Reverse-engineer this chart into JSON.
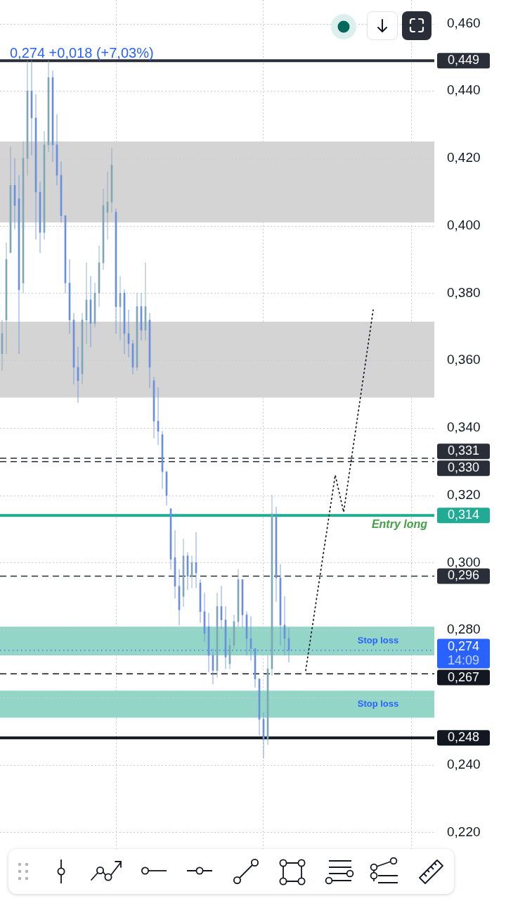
{
  "chart_data": {
    "type": "candlestick",
    "subtitle": "0,274 +0,018 (+7,03%)",
    "categories": [
      null,
      null,
      null,
      null,
      null,
      null,
      null,
      null,
      null,
      null,
      null,
      null,
      null,
      null,
      null,
      null,
      null,
      null,
      null,
      null,
      null,
      null,
      null,
      null,
      null,
      null,
      null,
      null,
      null,
      null,
      null,
      null,
      null,
      null,
      null,
      null,
      null,
      null,
      null,
      null,
      null,
      null,
      null,
      null,
      null,
      null,
      null,
      null,
      null,
      null,
      null,
      null,
      null,
      null,
      null,
      null,
      null,
      null,
      null,
      null,
      null,
      null,
      null,
      null,
      null,
      null,
      null,
      null,
      null,
      null,
      null,
      null,
      null,
      null,
      null,
      null,
      null,
      null,
      null,
      null,
      null,
      null,
      null,
      null,
      null,
      null,
      null,
      null,
      null,
      null,
      null,
      null,
      null,
      null,
      null,
      null,
      null,
      null,
      null,
      null,
      null,
      null,
      null
    ],
    "ohlc": [
      [
        0.362,
        0.372,
        0.357,
        0.368
      ],
      [
        0.372,
        0.395,
        0.362,
        0.39
      ],
      [
        0.392,
        0.4235,
        0.392,
        0.412
      ],
      [
        0.412,
        0.42,
        0.399,
        0.406
      ],
      [
        0.408,
        0.415,
        0.362,
        0.381
      ],
      [
        0.383,
        0.425,
        0.38,
        0.42
      ],
      [
        0.42,
        0.449,
        0.415,
        0.44
      ],
      [
        0.44,
        0.449,
        0.421,
        0.432
      ],
      [
        0.432,
        0.439,
        0.396,
        0.41
      ],
      [
        0.41,
        0.413,
        0.392,
        0.398
      ],
      [
        0.398,
        0.428,
        0.396,
        0.424
      ],
      [
        0.424,
        0.449,
        0.422,
        0.444
      ],
      [
        0.444,
        0.446,
        0.419,
        0.424
      ],
      [
        0.424,
        0.433,
        0.412,
        0.415
      ],
      [
        0.415,
        0.419,
        0.401,
        0.403
      ],
      [
        0.403,
        0.403,
        0.38,
        0.383
      ],
      [
        0.383,
        0.39,
        0.368,
        0.372
      ],
      [
        0.372,
        0.374,
        0.353,
        0.358
      ],
      [
        0.358,
        0.364,
        0.3475,
        0.354
      ],
      [
        0.356,
        0.374,
        0.353,
        0.372
      ],
      [
        0.372,
        0.389,
        0.365,
        0.378
      ],
      [
        0.378,
        0.385,
        0.364,
        0.371
      ],
      [
        0.371,
        0.383,
        0.37,
        0.38
      ],
      [
        0.38,
        0.394,
        0.376,
        0.389
      ],
      [
        0.389,
        0.411,
        0.387,
        0.406
      ],
      [
        0.404,
        0.416,
        0.396,
        0.407
      ],
      [
        0.407,
        0.423,
        0.404,
        0.418
      ],
      [
        0.404,
        0.405,
        0.368,
        0.376
      ],
      [
        0.376,
        0.385,
        0.366,
        0.38
      ],
      [
        0.38,
        0.381,
        0.362,
        0.368
      ],
      [
        0.368,
        0.375,
        0.361,
        0.365
      ],
      [
        0.365,
        0.366,
        0.356,
        0.358
      ],
      [
        0.358,
        0.38,
        0.357,
        0.376
      ],
      [
        0.376,
        0.38,
        0.366,
        0.369
      ],
      [
        0.369,
        0.389,
        0.366,
        0.376
      ],
      [
        0.372,
        0.374,
        0.352,
        0.358
      ],
      [
        0.354,
        0.355,
        0.337,
        0.342
      ],
      [
        0.342,
        0.352,
        0.335,
        0.339
      ],
      [
        0.338,
        0.339,
        0.322,
        0.327
      ],
      [
        0.327,
        0.327,
        0.317,
        0.32
      ],
      [
        0.316,
        0.316,
        0.298,
        0.301
      ],
      [
        0.3015,
        0.3095,
        0.2895,
        0.293
      ],
      [
        0.293,
        0.298,
        0.2815,
        0.286
      ],
      [
        0.29,
        0.307,
        0.287,
        0.302
      ],
      [
        0.302,
        0.303,
        0.292,
        0.296
      ],
      [
        0.296,
        0.302,
        0.2925,
        0.3
      ],
      [
        0.3,
        0.309,
        0.2925,
        0.297
      ],
      [
        0.294,
        0.295,
        0.2822,
        0.2855
      ],
      [
        0.2855,
        0.291,
        0.2765,
        0.279
      ],
      [
        0.281,
        0.285,
        0.2676,
        0.2725
      ],
      [
        0.2725,
        0.2745,
        0.264,
        0.268
      ],
      [
        0.268,
        0.291,
        0.266,
        0.287
      ],
      [
        0.287,
        0.293,
        0.2805,
        0.283
      ],
      [
        0.283,
        0.287,
        0.2685,
        0.272
      ],
      [
        0.27,
        0.2775,
        0.2685,
        0.2755
      ],
      [
        0.2755,
        0.2845,
        0.2745,
        0.2825
      ],
      [
        0.2825,
        0.298,
        0.281,
        0.295
      ],
      [
        0.295,
        0.295,
        0.2808,
        0.2845
      ],
      [
        0.2845,
        0.2855,
        0.2725,
        0.2775
      ],
      [
        0.2775,
        0.284,
        0.271,
        0.2745
      ],
      [
        0.2745,
        0.2745,
        0.263,
        0.2655
      ],
      [
        0.2655,
        0.2655,
        0.2488,
        0.2535
      ],
      [
        0.2535,
        0.2555,
        0.242,
        0.2475
      ],
      [
        0.2475,
        0.2725,
        0.246,
        0.2685
      ],
      [
        0.2685,
        0.32,
        0.2665,
        0.3145
      ],
      [
        0.3135,
        0.3165,
        0.2885,
        0.2955
      ],
      [
        0.2955,
        0.2995,
        0.2755,
        0.2815
      ],
      [
        0.2815,
        0.29,
        0.2725,
        0.2775
      ],
      [
        0.2775,
        0.2805,
        0.2705,
        0.274
      ],
      null,
      null,
      null,
      null,
      null,
      null,
      null,
      null,
      null,
      null,
      null,
      null,
      null,
      null,
      null,
      null,
      null,
      null,
      null,
      null,
      null,
      null,
      null,
      null,
      null,
      null,
      null,
      null,
      null,
      null,
      null,
      null,
      null,
      null
    ],
    "colors": [
      "#7fa6b8",
      "#7fa6b8",
      "#7fa6b8",
      "#6a8fdc",
      "#6a8fdc",
      "#7fa6b8",
      "#7fa6b8",
      "#6a8fdc",
      "#6a8fdc",
      "#6a8fdc",
      "#7fa6b8",
      "#7fa6b8",
      "#6a8fdc",
      "#6a8fdc",
      "#6a8fdc",
      "#6a8fdc",
      "#6a8fdc",
      "#6a8fdc",
      "#6a8fdc",
      "#7fa6b8",
      "#7fa6b8",
      "#6a8fdc",
      "#7fa6b8",
      "#7fa6b8",
      "#7fa6b8",
      "#7fa6b8",
      "#7fa6b8",
      "#6a8fdc",
      "#7fa6b8",
      "#6a8fdc",
      "#6a8fdc",
      "#6a8fdc",
      "#7fa6b8",
      "#6a8fdc",
      "#7fa6b8",
      "#6a8fdc",
      "#6a8fdc",
      "#6a8fdc",
      "#6a8fdc",
      "#6a8fdc",
      "#6a8fdc",
      "#6a8fdc",
      "#6a8fdc",
      "#7fa6b8",
      "#6a8fdc",
      "#7fa6b8",
      "#6a8fdc",
      "#6a8fdc",
      "#6a8fdc",
      "#6a8fdc",
      "#6a8fdc",
      "#7fa6b8",
      "#6a8fdc",
      "#6a8fdc",
      "#7fa6b8",
      "#7fa6b8",
      "#7fa6b8",
      "#6a8fdc",
      "#6a8fdc",
      "#6a8fdc",
      "#6a8fdc",
      "#6a8fdc",
      "#6a8fdc",
      "#7fa6b8",
      "#7fa6b8",
      "#6a8fdc",
      "#6a8fdc",
      "#6a8fdc",
      "#6a8fdc",
      null,
      null,
      null,
      null,
      null,
      null,
      null,
      null,
      null,
      null,
      null,
      null,
      null,
      null,
      null,
      null,
      null,
      null,
      null,
      null,
      null,
      null,
      null,
      null,
      null,
      null,
      null,
      null,
      null,
      null,
      null,
      null,
      null,
      null
    ],
    "series": [
      {
        "type": "line",
        "color": "#131722",
        "line_style": "dotted",
        "marker": "none",
        "values": [
          null,
          null,
          null,
          null,
          null,
          null,
          null,
          null,
          null,
          null,
          null,
          null,
          null,
          null,
          null,
          null,
          null,
          null,
          null,
          null,
          null,
          null,
          null,
          null,
          null,
          null,
          null,
          null,
          null,
          null,
          null,
          null,
          null,
          null,
          null,
          null,
          null,
          null,
          null,
          null,
          null,
          null,
          null,
          null,
          null,
          null,
          null,
          null,
          null,
          null,
          null,
          null,
          null,
          null,
          null,
          null,
          null,
          null,
          null,
          null,
          null,
          null,
          null,
          null,
          null,
          null,
          null,
          null,
          null,
          null,
          null,
          null,
          0.268,
          null,
          null,
          null,
          null,
          null,
          null,
          0.326,
          null,
          0.315,
          null,
          null,
          null,
          null,
          null,
          null,
          0.375,
          null,
          null,
          null,
          null,
          null,
          null,
          null,
          null,
          null,
          null,
          null,
          null,
          null,
          null
        ]
      }
    ],
    "ylim": [
      0.214,
      0.467
    ],
    "yticks": [
      {
        "value": 0.22,
        "label": "0,220"
      },
      {
        "value": 0.24,
        "label": "0,240"
      },
      {
        "value": 0.26,
        "label": null
      },
      {
        "value": 0.28,
        "label": "0,280"
      },
      {
        "value": 0.3,
        "label": "0,300"
      },
      {
        "value": 0.32,
        "label": "0,320"
      },
      {
        "value": 0.34,
        "label": "0,340"
      },
      {
        "value": 0.36,
        "label": "0,360"
      },
      {
        "value": 0.38,
        "label": "0,380"
      },
      {
        "value": 0.4,
        "label": "0,400"
      },
      {
        "value": 0.42,
        "label": "0,420"
      },
      {
        "value": 0.44,
        "label": "0,440"
      },
      {
        "value": 0.46,
        "label": "0,460"
      }
    ],
    "grid": true,
    "tick_labels": "y",
    "ref_lines": [
      {
        "axis": "y",
        "value": 0.449,
        "color": "#2a2e39",
        "line_style": "solid",
        "label": "0,449"
      },
      {
        "axis": "y",
        "value": 0.331,
        "color": "#2a2e39",
        "line_style": "dashed",
        "label": "0,331"
      },
      {
        "axis": "y",
        "value": 0.33,
        "color": "#2a2e39",
        "line_style": "dashed",
        "label": "0,330"
      },
      {
        "axis": "y",
        "value": 0.314,
        "color": "#22ab94",
        "line_style": "solid",
        "label": "0,314"
      },
      {
        "axis": "y",
        "value": 0.296,
        "color": "#2a2e39",
        "line_style": "dashed",
        "label": "0,296"
      },
      {
        "axis": "y",
        "value": 0.274,
        "color": "#2962ff",
        "line_style": "dotted",
        "label": "0,274\n14:09"
      },
      {
        "axis": "y",
        "value": 0.267,
        "color": "#131722",
        "line_style": "dashed",
        "label": "0,267"
      },
      {
        "axis": "y",
        "value": 0.248,
        "color": "#131722",
        "line_style": "solid",
        "label": "0,248"
      }
    ],
    "bands": [
      {
        "axis": "y",
        "from": 0.401,
        "to": 0.425,
        "color": "#d4d4d4"
      },
      {
        "axis": "y",
        "from": 0.349,
        "to": 0.3715,
        "color": "#d4d4d4"
      },
      {
        "axis": "y",
        "from": 0.2725,
        "to": 0.281,
        "label": "Stop loss",
        "color": "#93d6c8"
      },
      {
        "axis": "y",
        "from": 0.254,
        "to": 0.262,
        "label": "Stop loss",
        "color": "#93d6c8"
      }
    ],
    "annotations": [
      {
        "text": "Entry long",
        "y": 0.314
      }
    ]
  }
}
